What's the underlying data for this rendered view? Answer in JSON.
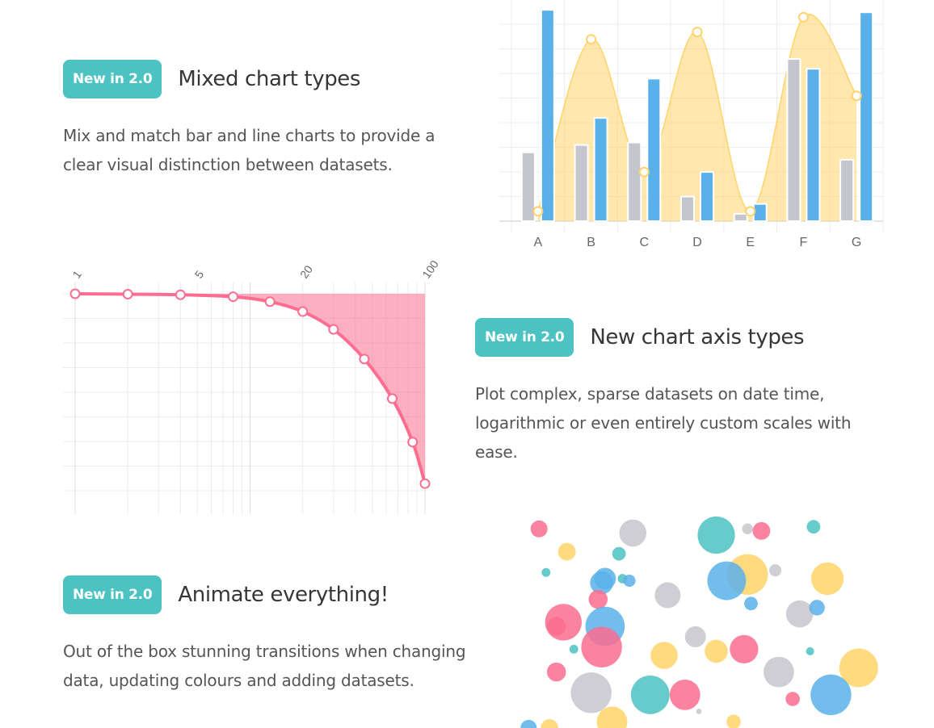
{
  "features": [
    {
      "badge": "New in 2.0",
      "title": "Mixed chart types",
      "description": "Mix and match bar and line charts to provide a clear visual distinction between datasets."
    },
    {
      "badge": "New in 2.0",
      "title": "New chart axis types",
      "description": "Plot complex, sparse datasets on date time, logarithmic or even entirely custom scales with ease."
    },
    {
      "badge": "New in 2.0",
      "title": "Animate everything!",
      "description": "Out of the box stunning transitions when changing data, updating colours and adding datasets."
    }
  ],
  "colors": {
    "teal": "#4dc2c2",
    "blue": "#5ab1ea",
    "grey": "#c5c5cd",
    "yellow": "#ffd369",
    "pink": "#fc6d8f",
    "grid": "#ececec"
  },
  "chart_data": [
    {
      "type": "bar",
      "title": "",
      "categories": [
        "A",
        "B",
        "C",
        "D",
        "E",
        "F",
        "G"
      ],
      "ylim": [
        0,
        90
      ],
      "series": [
        {
          "name": "grey bars",
          "type": "bar",
          "values": [
            28,
            31,
            32,
            10,
            3,
            66,
            25
          ]
        },
        {
          "name": "blue bars",
          "type": "bar",
          "values": [
            86,
            42,
            58,
            20,
            7,
            62,
            85
          ]
        },
        {
          "name": "yellow area",
          "type": "area",
          "values": [
            4,
            74,
            20,
            77,
            4,
            83,
            51
          ]
        }
      ]
    },
    {
      "type": "area",
      "title": "",
      "xscale": "log",
      "x_ticks": [
        "1",
        "5",
        "20",
        "100"
      ],
      "x": [
        1,
        2,
        4,
        8,
        13,
        20,
        30,
        45,
        65,
        85,
        100
      ],
      "values": [
        100,
        99.8,
        99.5,
        98.5,
        96,
        91,
        82,
        67,
        47,
        25,
        4
      ],
      "ylim": [
        0,
        100
      ]
    },
    {
      "type": "scatter",
      "title": "",
      "xlim": [
        0,
        100
      ],
      "ylim": [
        0,
        100
      ],
      "points": [
        {
          "x": 4,
          "y": 96,
          "r": 2.5,
          "c": "pink"
        },
        {
          "x": 12,
          "y": 85,
          "r": 2.6,
          "c": "yellow"
        },
        {
          "x": 31,
          "y": 94,
          "r": 4,
          "c": "grey"
        },
        {
          "x": 27,
          "y": 84,
          "r": 2.0,
          "c": "teal"
        },
        {
          "x": 6,
          "y": 75,
          "r": 1.3,
          "c": "teal"
        },
        {
          "x": 22,
          "y": 70,
          "r": 3.4,
          "c": "blue"
        },
        {
          "x": 23,
          "y": 72,
          "r": 3.2,
          "c": "blue"
        },
        {
          "x": 28,
          "y": 72,
          "r": 1.4,
          "c": "teal"
        },
        {
          "x": 30,
          "y": 71,
          "r": 1.8,
          "c": "blue"
        },
        {
          "x": 21,
          "y": 62,
          "r": 2.8,
          "c": "pink"
        },
        {
          "x": 41,
          "y": 64,
          "r": 3.8,
          "c": "grey"
        },
        {
          "x": 55,
          "y": 93,
          "r": 5.5,
          "c": "teal"
        },
        {
          "x": 64,
          "y": 96,
          "r": 1.6,
          "c": "grey"
        },
        {
          "x": 68,
          "y": 95,
          "r": 2.6,
          "c": "pink"
        },
        {
          "x": 64,
          "y": 74,
          "r": 6,
          "c": "yellow"
        },
        {
          "x": 58,
          "y": 71,
          "r": 5.7,
          "c": "blue"
        },
        {
          "x": 72,
          "y": 76,
          "r": 1.8,
          "c": "grey"
        },
        {
          "x": 83,
          "y": 97,
          "r": 2.0,
          "c": "teal"
        },
        {
          "x": 87,
          "y": 72,
          "r": 4.8,
          "c": "yellow"
        },
        {
          "x": 11,
          "y": 51,
          "r": 5.4,
          "c": "pink"
        },
        {
          "x": 9,
          "y": 49,
          "r": 2.8,
          "c": "pink"
        },
        {
          "x": 23,
          "y": 49,
          "r": 5.8,
          "c": "blue"
        },
        {
          "x": 22,
          "y": 39,
          "r": 6.0,
          "c": "pink"
        },
        {
          "x": 14,
          "y": 38,
          "r": 1.3,
          "c": "teal"
        },
        {
          "x": 9,
          "y": 27,
          "r": 2.8,
          "c": "pink"
        },
        {
          "x": 49,
          "y": 44,
          "r": 3.1,
          "c": "grey"
        },
        {
          "x": 55,
          "y": 37,
          "r": 3.4,
          "c": "yellow"
        },
        {
          "x": 40,
          "y": 35,
          "r": 4.0,
          "c": "yellow"
        },
        {
          "x": 63,
          "y": 38,
          "r": 4.2,
          "c": "pink"
        },
        {
          "x": 65,
          "y": 60,
          "r": 2.0,
          "c": "blue"
        },
        {
          "x": 79,
          "y": 55,
          "r": 4.0,
          "c": "grey"
        },
        {
          "x": 84,
          "y": 58,
          "r": 2.3,
          "c": "blue"
        },
        {
          "x": 82,
          "y": 37,
          "r": 1.2,
          "c": "teal"
        },
        {
          "x": 73,
          "y": 27,
          "r": 4.5,
          "c": "grey"
        },
        {
          "x": 96,
          "y": 29,
          "r": 5.7,
          "c": "yellow"
        },
        {
          "x": 19,
          "y": 17,
          "r": 6.0,
          "c": "grey"
        },
        {
          "x": 36,
          "y": 16,
          "r": 5.7,
          "c": "teal"
        },
        {
          "x": 46,
          "y": 16,
          "r": 4.5,
          "c": "pink"
        },
        {
          "x": 50,
          "y": 8,
          "r": 0.8,
          "c": "grey"
        },
        {
          "x": 77,
          "y": 14,
          "r": 2.1,
          "c": "pink"
        },
        {
          "x": 88,
          "y": 16,
          "r": 6.0,
          "c": "blue"
        },
        {
          "x": 25,
          "y": 3,
          "r": 4.5,
          "c": "yellow"
        },
        {
          "x": 60,
          "y": 3,
          "r": 2.1,
          "c": "yellow"
        },
        {
          "x": 1,
          "y": 0,
          "r": 2.4,
          "c": "blue"
        },
        {
          "x": 7,
          "y": 0,
          "r": 2.6,
          "c": "yellow"
        }
      ]
    }
  ]
}
